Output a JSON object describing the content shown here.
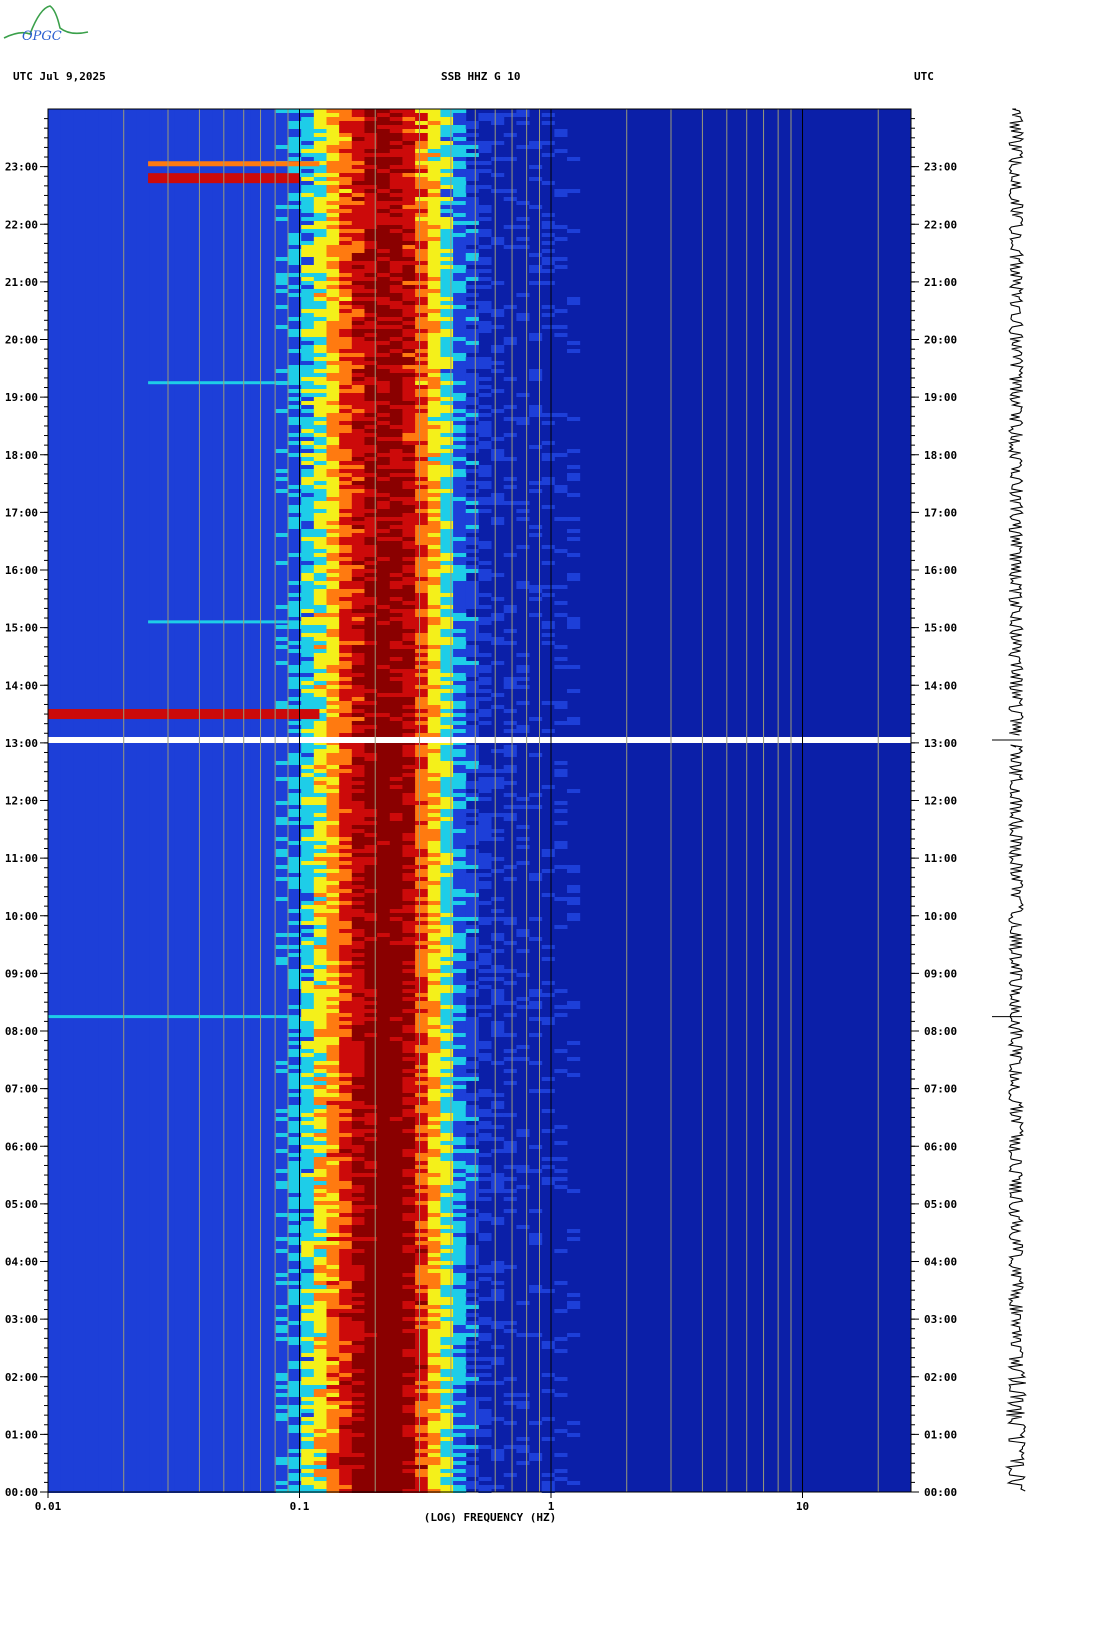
{
  "logo_text": "OPGC",
  "header": {
    "left": "UTC  Jul 9,2025",
    "center": "SSB HHZ G 10",
    "right": "UTC"
  },
  "colors": {
    "background": "#0b1fa8",
    "dark_blue": "#0a19a0",
    "blue": "#1d3fd8",
    "cyan": "#1ecde8",
    "yellow": "#f4f01a",
    "orange": "#ff7a10",
    "red": "#cc0a0a",
    "dark_red": "#8a0000",
    "gap": "#ffffff"
  },
  "chart_data": {
    "type": "heatmap",
    "xlabel": "(LOG) FREQUENCY (HZ)",
    "x_scale": "log",
    "x_ticks": [
      0.01,
      0.1,
      1,
      10
    ],
    "x_tick_labels": [
      "0.01",
      "0.1",
      "1",
      "10"
    ],
    "xlim": [
      0.01,
      27
    ],
    "y_tick_labels": [
      "00:00",
      "01:00",
      "02:00",
      "03:00",
      "04:00",
      "05:00",
      "06:00",
      "07:00",
      "08:00",
      "09:00",
      "10:00",
      "11:00",
      "12:00",
      "13:00",
      "14:00",
      "15:00",
      "16:00",
      "17:00",
      "18:00",
      "19:00",
      "20:00",
      "21:00",
      "22:00",
      "23:00"
    ],
    "ylim_hours": [
      0,
      24
    ],
    "gap_hour": 13.05,
    "peak_band_hz": [
      0.18,
      0.28
    ],
    "events": [
      {
        "hour": 13.5,
        "f_from": 0.01,
        "f_to": 0.12,
        "strength": "strong"
      },
      {
        "hour": 22.8,
        "f_from": 0.025,
        "f_to": 0.1,
        "strength": "strong"
      },
      {
        "hour": 23.05,
        "f_from": 0.025,
        "f_to": 0.12,
        "strength": "medium"
      },
      {
        "hour": 19.25,
        "f_from": 0.025,
        "f_to": 0.1,
        "strength": "weak"
      },
      {
        "hour": 15.1,
        "f_from": 0.025,
        "f_to": 0.1,
        "strength": "weak"
      },
      {
        "hour": 8.25,
        "f_from": 0.01,
        "f_to": 0.1,
        "strength": "weak"
      }
    ]
  }
}
